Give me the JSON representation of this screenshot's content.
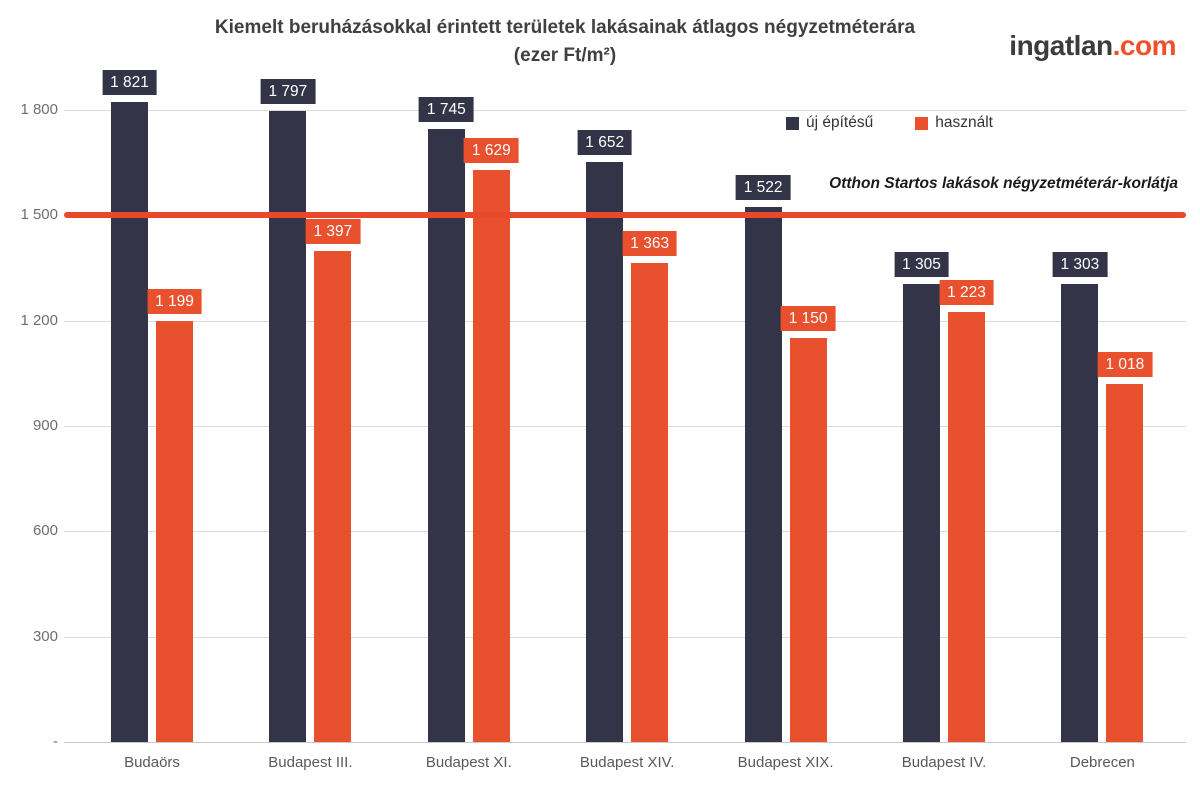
{
  "title": {
    "line1": "Kiemelt beruházásokkal érintett területek lakásainak átlagos négyzetméterára",
    "line2": "(ezer Ft/m²)"
  },
  "logo": {
    "name": "ingatlan",
    "tld": ".com"
  },
  "colors": {
    "new_build": "#333447",
    "used": "#E8502E",
    "reference_line": "#E8492B",
    "grid": "#DADADA",
    "logo_accent": "#F0512C"
  },
  "chart_data": {
    "type": "bar",
    "title": "Kiemelt beruházásokkal érintett területek lakásainak átlagos négyzetméterára (ezer Ft/m²)",
    "categories": [
      "Budaörs",
      "Budapest III.",
      "Budapest XI.",
      "Budapest XIV.",
      "Budapest XIX.",
      "Budapest IV.",
      "Debrecen"
    ],
    "series": [
      {
        "name": "új építésű",
        "color": "#333447",
        "values": [
          1821,
          1797,
          1745,
          1652,
          1522,
          1305,
          1303
        ]
      },
      {
        "name": "használt",
        "color": "#E8502E",
        "values": [
          1199,
          1397,
          1629,
          1363,
          1150,
          1223,
          1018
        ]
      }
    ],
    "reference_line": {
      "value": 1500,
      "label": "Otthon Startos lakások négyzetméterár-korlátja",
      "color": "#E8492B"
    },
    "xlabel": "",
    "ylabel": "",
    "ylim": [
      0,
      1900
    ],
    "yticks": [
      1800,
      1500,
      1200,
      900,
      600,
      300,
      0
    ],
    "ytick_zero_label": "-",
    "grid": true,
    "legend_position": "top-right-inside",
    "value_labels": true
  }
}
